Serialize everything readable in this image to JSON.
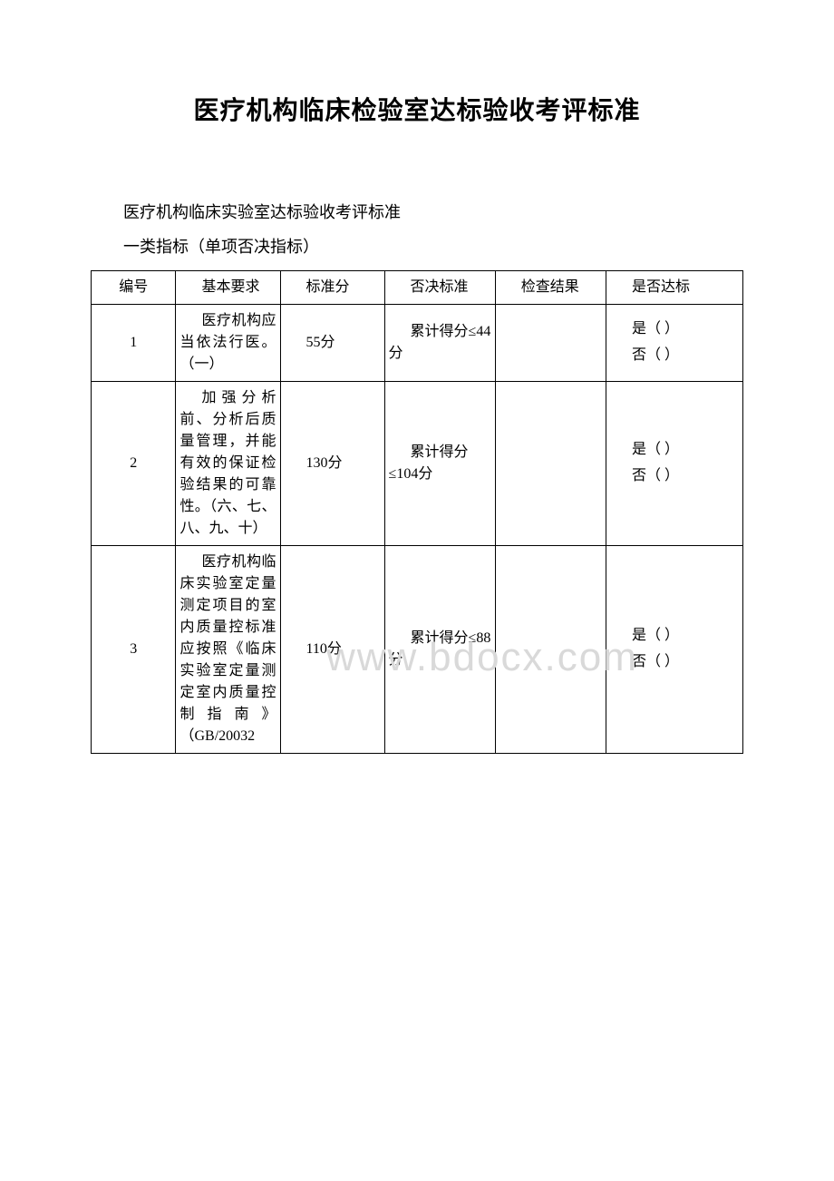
{
  "document": {
    "title": "医疗机构临床检验室达标验收考评标准",
    "subtitle": "医疗机构临床实验室达标验收考评标准",
    "category": "一类指标（单项否决指标）",
    "watermark": "www.bdocx.com"
  },
  "table": {
    "headers": {
      "num": "编号",
      "requirement": "基本要求",
      "score": "标准分",
      "reject": "否决标准",
      "result": "检查结果",
      "pass": "是否达标"
    },
    "rows": [
      {
        "num": "1",
        "requirement": "医疗机构应当依法行医。（一）",
        "score": "55分",
        "reject": "累计得分≤44分",
        "result": "",
        "pass_yes": "是（   ）",
        "pass_no": "否（   ）"
      },
      {
        "num": "2",
        "requirement": "加强分析前、分析后质量管理，并能有效的保证检验结果的可靠性。（六、七、八、九、十）",
        "score": "130分",
        "reject": "累计得分≤104分",
        "result": "",
        "pass_yes": "是（   ）",
        "pass_no": "否（   ）"
      },
      {
        "num": "3",
        "requirement": "医疗机构临床实验室定量测定项目的室内质量控标准应按照《临床实验室定量测定室内质量控制指南》（GB/20032",
        "score": "110分",
        "reject": "累计得分≤88分",
        "result": "",
        "pass_yes": "是（   ）",
        "pass_no": "否（   ）"
      }
    ]
  }
}
